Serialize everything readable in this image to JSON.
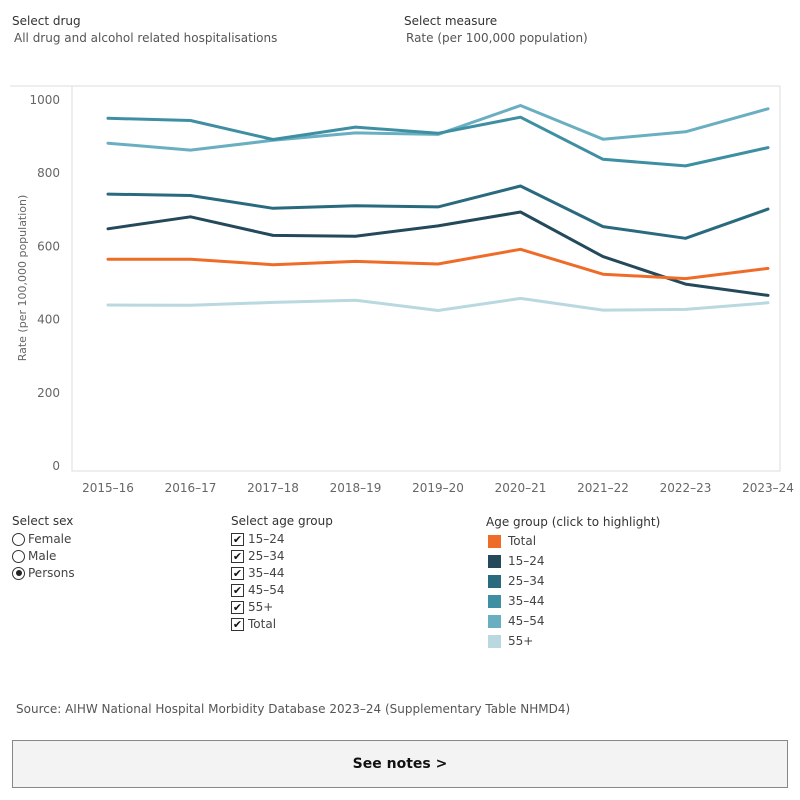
{
  "selectors": {
    "drug": {
      "label": "Select drug",
      "value": "All drug and alcohol related hospitalisations"
    },
    "measure": {
      "label": "Select measure",
      "value": "Rate (per 100,000 population)"
    }
  },
  "chart_data": {
    "type": "line",
    "x": [
      "2015–16",
      "2016–17",
      "2017–18",
      "2018–19",
      "2019–20",
      "2020–21",
      "2021–22",
      "2022–23",
      "2023–24"
    ],
    "ylabel": "Rate (per 100,000 population)",
    "yticks": [
      0,
      200,
      400,
      600,
      800,
      1000
    ],
    "ylim": [
      0,
      1030
    ],
    "grid": false,
    "series": [
      {
        "name": "55+",
        "color": "#b9d8e0",
        "values": [
          440,
          439,
          447,
          453,
          425,
          458,
          426,
          428,
          446
        ]
      },
      {
        "name": "45–54",
        "color": "#6aafc1",
        "values": [
          882,
          863,
          890,
          910,
          906,
          985,
          893,
          913,
          976
        ]
      },
      {
        "name": "35–44",
        "color": "#3f8fa3",
        "values": [
          950,
          944,
          892,
          926,
          909,
          953,
          838,
          820,
          870
        ]
      },
      {
        "name": "25–34",
        "color": "#2a6a7e",
        "values": [
          743,
          739,
          704,
          711,
          708,
          765,
          654,
          622,
          702
        ]
      },
      {
        "name": "15–24",
        "color": "#24495a",
        "values": [
          648,
          681,
          630,
          628,
          656,
          694,
          572,
          497,
          466
        ]
      },
      {
        "name": "Total",
        "color": "#ee6c27",
        "values": [
          565,
          565,
          550,
          559,
          552,
          592,
          524,
          512,
          540
        ]
      }
    ]
  },
  "sex": {
    "label": "Select sex",
    "options": [
      {
        "label": "Female",
        "checked": false
      },
      {
        "label": "Male",
        "checked": false
      },
      {
        "label": "Persons",
        "checked": true
      }
    ]
  },
  "age": {
    "label": "Select age group",
    "options": [
      {
        "label": "15–24",
        "checked": true
      },
      {
        "label": "25–34",
        "checked": true
      },
      {
        "label": "35–44",
        "checked": true
      },
      {
        "label": "45–54",
        "checked": true
      },
      {
        "label": "55+",
        "checked": true
      },
      {
        "label": "Total",
        "checked": true
      }
    ]
  },
  "legend": {
    "label": "Age group (click to highlight)",
    "items": [
      {
        "label": "Total",
        "color": "#ee6c27"
      },
      {
        "label": "15–24",
        "color": "#24495a"
      },
      {
        "label": "25–34",
        "color": "#2a6a7e"
      },
      {
        "label": "35–44",
        "color": "#3f8fa3"
      },
      {
        "label": "45–54",
        "color": "#6aafc1"
      },
      {
        "label": "55+",
        "color": "#b9d8e0"
      }
    ]
  },
  "source": "Source: AIHW National Hospital Morbidity Database 2023–24 (Supplementary Table NHMD4)",
  "notes_button": "See notes >",
  "check_glyph": "✔"
}
